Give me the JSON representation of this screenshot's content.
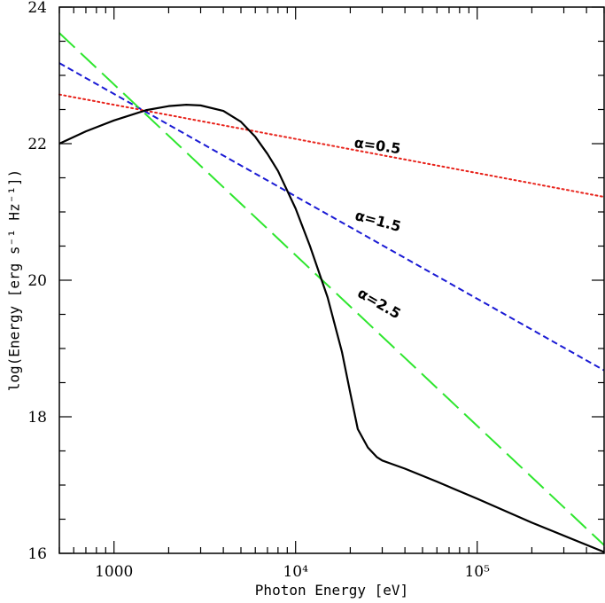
{
  "chart_data": {
    "type": "line",
    "xscale": "log",
    "xlim": [
      500,
      500000
    ],
    "ylim": [
      16,
      24
    ],
    "xlabel": "Photon Energy [eV]",
    "ylabel": "log(Energy [erg s⁻¹ Hz⁻¹])",
    "xticks": [
      {
        "value": 1000,
        "label": "1000"
      },
      {
        "value": 10000,
        "label": "10⁴"
      },
      {
        "value": 100000,
        "label": "10⁵"
      }
    ],
    "yticks": [
      16,
      18,
      20,
      22,
      24
    ],
    "grid": false,
    "series": [
      {
        "name": "alpha_0.5",
        "label": "α=0.5",
        "color": "#e8231b",
        "style": "dotted",
        "x": [
          500,
          500000
        ],
        "y": [
          22.72,
          21.22
        ]
      },
      {
        "name": "alpha_1.5",
        "label": "α=1.5",
        "color": "#1a1ad4",
        "style": "dashed",
        "x": [
          500,
          500000
        ],
        "y": [
          23.18,
          18.68
        ]
      },
      {
        "name": "alpha_2.5",
        "label": "α=2.5",
        "color": "#2ee62e",
        "style": "long-dashed",
        "x": [
          500,
          500000
        ],
        "y": [
          23.62,
          16.12
        ]
      },
      {
        "name": "blackbody_plus_powerlaw",
        "label": "",
        "color": "#000000",
        "style": "solid",
        "x": [
          500,
          700,
          1000,
          1500,
          2000,
          2500,
          3000,
          4000,
          5000,
          6000,
          7000,
          8000,
          10000,
          12000,
          15000,
          18000,
          20000,
          22000,
          25000,
          28000,
          30000,
          33000,
          40000,
          60000,
          100000,
          200000,
          500000
        ],
        "y": [
          22.0,
          22.18,
          22.34,
          22.49,
          22.55,
          22.57,
          22.56,
          22.48,
          22.32,
          22.1,
          21.85,
          21.6,
          21.05,
          20.5,
          19.75,
          18.95,
          18.35,
          17.82,
          17.55,
          17.41,
          17.36,
          17.32,
          17.24,
          17.05,
          16.8,
          16.45,
          16.02
        ]
      }
    ],
    "annotations": [
      {
        "text": "α=0.5",
        "x": 28000,
        "y": 21.9,
        "rotation": 8
      },
      {
        "text": "α=1.5",
        "x": 28000,
        "y": 20.8,
        "rotation": 15
      },
      {
        "text": "α=2.5",
        "x": 28000,
        "y": 19.6,
        "rotation": 30
      }
    ]
  }
}
